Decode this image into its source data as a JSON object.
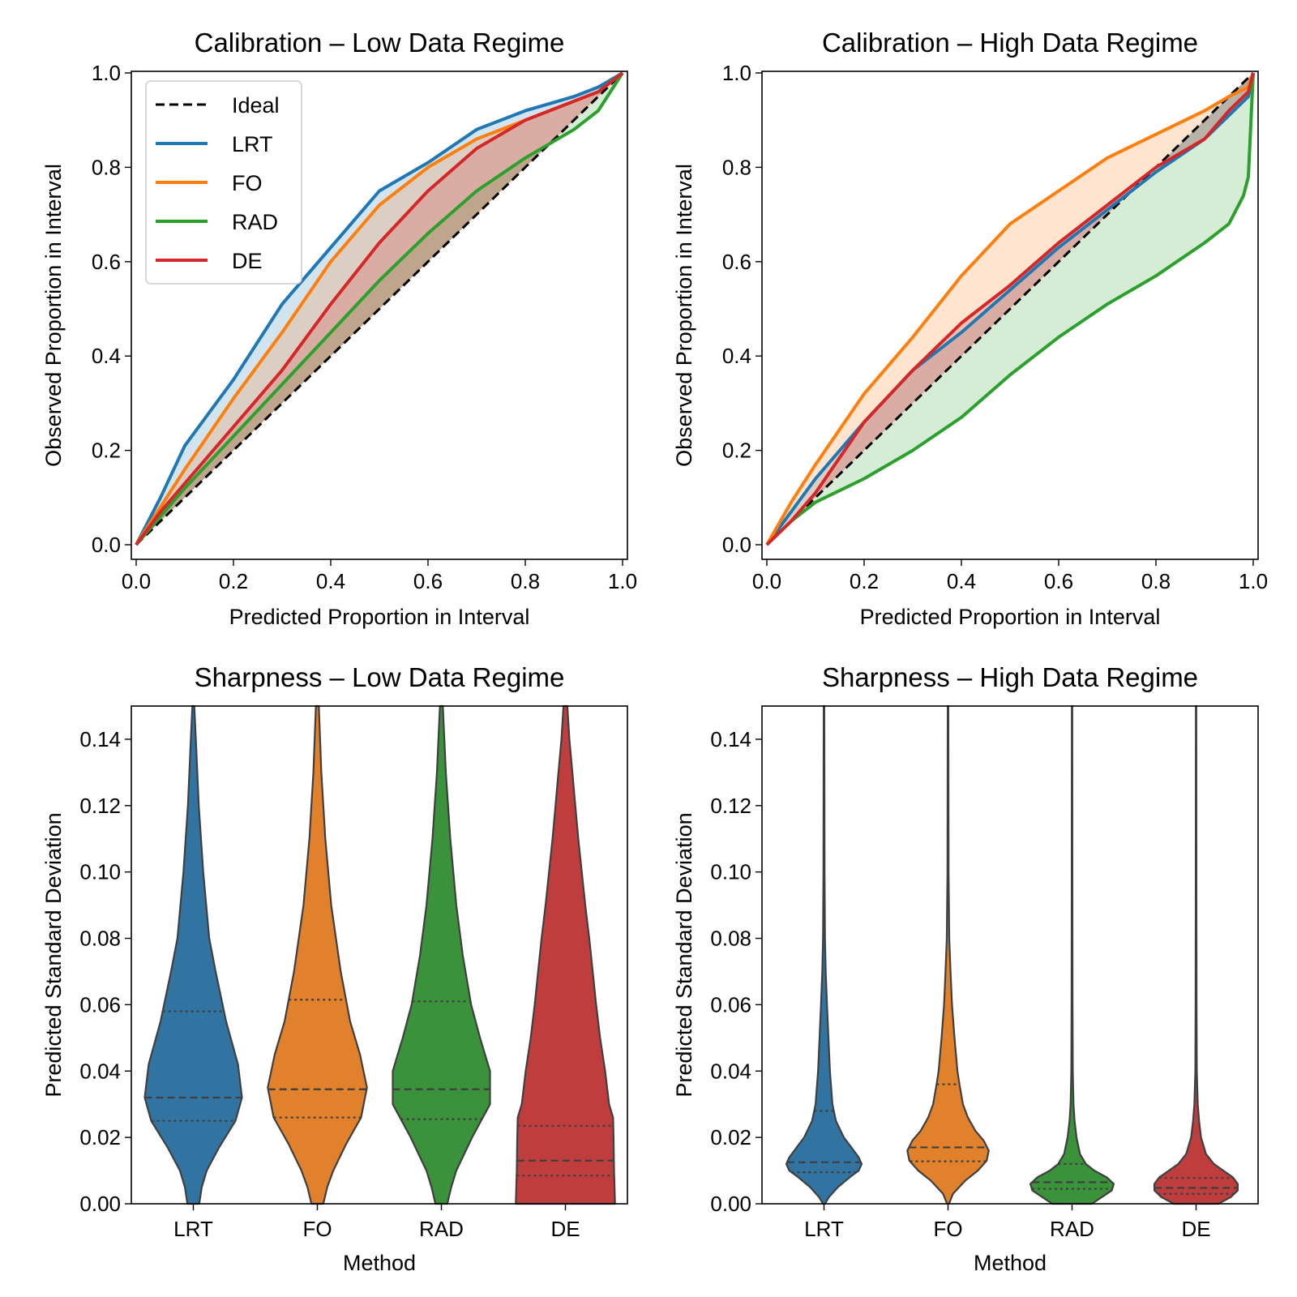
{
  "chart_data": [
    {
      "type": "line",
      "title": "Calibration – Low Data Regime",
      "xlabel": "Predicted Proportion in Interval",
      "ylabel": "Observed Proportion in Interval",
      "xlim": [
        0,
        1
      ],
      "ylim": [
        0,
        1
      ],
      "xticks": [
        "0.0",
        "0.2",
        "0.4",
        "0.6",
        "0.8",
        "1.0"
      ],
      "yticks": [
        "0.0",
        "0.2",
        "0.4",
        "0.6",
        "0.8",
        "1.0"
      ],
      "legend": {
        "location": "upper-left"
      },
      "ideal": {
        "name": "Ideal",
        "color": "#000000",
        "style": "dashed"
      },
      "series": [
        {
          "name": "LRT",
          "color": "#1f77b4",
          "x": [
            0,
            0.05,
            0.1,
            0.2,
            0.3,
            0.4,
            0.5,
            0.6,
            0.7,
            0.8,
            0.9,
            0.95,
            1.0
          ],
          "y": [
            0,
            0.1,
            0.21,
            0.35,
            0.51,
            0.63,
            0.75,
            0.81,
            0.88,
            0.92,
            0.95,
            0.97,
            1.0
          ]
        },
        {
          "name": "FO",
          "color": "#ff7f0e",
          "x": [
            0,
            0.05,
            0.1,
            0.2,
            0.3,
            0.4,
            0.5,
            0.6,
            0.7,
            0.8,
            0.9,
            0.95,
            1.0
          ],
          "y": [
            0,
            0.08,
            0.16,
            0.31,
            0.45,
            0.6,
            0.72,
            0.8,
            0.86,
            0.9,
            0.94,
            0.96,
            1.0
          ]
        },
        {
          "name": "RAD",
          "color": "#2ca02c",
          "x": [
            0,
            0.05,
            0.1,
            0.2,
            0.3,
            0.4,
            0.5,
            0.6,
            0.7,
            0.8,
            0.9,
            0.95,
            1.0
          ],
          "y": [
            0,
            0.06,
            0.12,
            0.23,
            0.34,
            0.45,
            0.56,
            0.66,
            0.75,
            0.82,
            0.88,
            0.92,
            1.0
          ]
        },
        {
          "name": "DE",
          "color": "#d62728",
          "x": [
            0,
            0.05,
            0.1,
            0.2,
            0.3,
            0.4,
            0.5,
            0.6,
            0.7,
            0.8,
            0.9,
            0.95,
            1.0
          ],
          "y": [
            0,
            0.07,
            0.13,
            0.25,
            0.37,
            0.51,
            0.64,
            0.75,
            0.84,
            0.9,
            0.94,
            0.96,
            1.0
          ]
        }
      ]
    },
    {
      "type": "line",
      "title": "Calibration – High Data Regime",
      "xlabel": "Predicted Proportion in Interval",
      "ylabel": "Observed Proportion in Interval",
      "xlim": [
        0,
        1
      ],
      "ylim": [
        0,
        1
      ],
      "xticks": [
        "0.0",
        "0.2",
        "0.4",
        "0.6",
        "0.8",
        "1.0"
      ],
      "yticks": [
        "0.0",
        "0.2",
        "0.4",
        "0.6",
        "0.8",
        "1.0"
      ],
      "ideal": {
        "name": "Ideal",
        "color": "#000000",
        "style": "dashed"
      },
      "series": [
        {
          "name": "LRT",
          "color": "#1f77b4",
          "x": [
            0,
            0.05,
            0.1,
            0.2,
            0.3,
            0.4,
            0.5,
            0.6,
            0.7,
            0.8,
            0.9,
            0.95,
            0.99,
            1.0
          ],
          "y": [
            0,
            0.07,
            0.14,
            0.26,
            0.37,
            0.45,
            0.54,
            0.63,
            0.71,
            0.79,
            0.86,
            0.91,
            0.95,
            1.0
          ]
        },
        {
          "name": "FO",
          "color": "#ff7f0e",
          "x": [
            0,
            0.05,
            0.1,
            0.2,
            0.3,
            0.4,
            0.5,
            0.6,
            0.7,
            0.8,
            0.9,
            0.95,
            0.99,
            1.0
          ],
          "y": [
            0,
            0.09,
            0.17,
            0.32,
            0.44,
            0.57,
            0.68,
            0.75,
            0.82,
            0.87,
            0.92,
            0.95,
            0.97,
            1.0
          ]
        },
        {
          "name": "RAD",
          "color": "#2ca02c",
          "x": [
            0,
            0.05,
            0.1,
            0.2,
            0.3,
            0.4,
            0.5,
            0.6,
            0.7,
            0.8,
            0.9,
            0.95,
            0.98,
            0.99,
            1.0
          ],
          "y": [
            0,
            0.05,
            0.09,
            0.14,
            0.2,
            0.27,
            0.36,
            0.44,
            0.51,
            0.57,
            0.64,
            0.68,
            0.74,
            0.78,
            1.0
          ]
        },
        {
          "name": "DE",
          "color": "#d62728",
          "x": [
            0,
            0.05,
            0.1,
            0.2,
            0.3,
            0.4,
            0.5,
            0.6,
            0.7,
            0.8,
            0.9,
            0.95,
            0.99,
            1.0
          ],
          "y": [
            0,
            0.05,
            0.11,
            0.26,
            0.37,
            0.47,
            0.55,
            0.64,
            0.72,
            0.8,
            0.86,
            0.92,
            0.96,
            1.0
          ]
        }
      ]
    },
    {
      "type": "violin",
      "title": "Sharpness – Low Data Regime",
      "xlabel": "Method",
      "ylabel": "Predicted Standard Deviation",
      "ylim": [
        0,
        0.15
      ],
      "yticks": [
        "0.00",
        "0.02",
        "0.04",
        "0.06",
        "0.08",
        "0.10",
        "0.12",
        "0.14"
      ],
      "categories": [
        "LRT",
        "FO",
        "RAD",
        "DE"
      ],
      "series": [
        {
          "name": "LRT",
          "color": "#3274a1",
          "min": 0.0,
          "q1": 0.025,
          "median": 0.032,
          "q3": 0.058,
          "profile": [
            [
              0,
              0.12
            ],
            [
              0.005,
              0.17
            ],
            [
              0.01,
              0.27
            ],
            [
              0.017,
              0.52
            ],
            [
              0.025,
              0.85
            ],
            [
              0.032,
              0.98
            ],
            [
              0.042,
              0.9
            ],
            [
              0.055,
              0.66
            ],
            [
              0.07,
              0.45
            ],
            [
              0.08,
              0.32
            ],
            [
              0.1,
              0.2
            ],
            [
              0.12,
              0.11
            ],
            [
              0.14,
              0.05
            ],
            [
              0.15,
              0.02
            ]
          ]
        },
        {
          "name": "FO",
          "color": "#e1812c",
          "min": 0.0,
          "q1": 0.026,
          "median": 0.0345,
          "q3": 0.0615,
          "profile": [
            [
              0,
              0.12
            ],
            [
              0.005,
              0.2
            ],
            [
              0.01,
              0.32
            ],
            [
              0.018,
              0.58
            ],
            [
              0.026,
              0.88
            ],
            [
              0.035,
              1.0
            ],
            [
              0.045,
              0.86
            ],
            [
              0.055,
              0.66
            ],
            [
              0.07,
              0.47
            ],
            [
              0.09,
              0.28
            ],
            [
              0.11,
              0.16
            ],
            [
              0.13,
              0.08
            ],
            [
              0.15,
              0.03
            ]
          ]
        },
        {
          "name": "RAD",
          "color": "#3a923a",
          "min": 0.0,
          "q1": 0.0255,
          "median": 0.0345,
          "q3": 0.061,
          "profile": [
            [
              0,
              0.12
            ],
            [
              0.005,
              0.2
            ],
            [
              0.01,
              0.3
            ],
            [
              0.02,
              0.62
            ],
            [
              0.03,
              0.98
            ],
            [
              0.04,
              0.98
            ],
            [
              0.05,
              0.78
            ],
            [
              0.06,
              0.6
            ],
            [
              0.075,
              0.43
            ],
            [
              0.09,
              0.3
            ],
            [
              0.11,
              0.18
            ],
            [
              0.13,
              0.09
            ],
            [
              0.15,
              0.03
            ]
          ]
        },
        {
          "name": "DE",
          "color": "#c03d3e",
          "min": 0.0,
          "q1": 0.0085,
          "median": 0.013,
          "q3": 0.0235,
          "profile": [
            [
              0,
              1.0
            ],
            [
              0.005,
              0.99
            ],
            [
              0.01,
              0.98
            ],
            [
              0.02,
              0.97
            ],
            [
              0.026,
              0.96
            ],
            [
              0.03,
              0.88
            ],
            [
              0.04,
              0.8
            ],
            [
              0.05,
              0.7
            ],
            [
              0.06,
              0.62
            ],
            [
              0.07,
              0.55
            ],
            [
              0.08,
              0.48
            ],
            [
              0.09,
              0.4
            ],
            [
              0.1,
              0.33
            ],
            [
              0.11,
              0.26
            ],
            [
              0.12,
              0.2
            ],
            [
              0.13,
              0.14
            ],
            [
              0.14,
              0.08
            ],
            [
              0.15,
              0.04
            ]
          ]
        }
      ]
    },
    {
      "type": "violin",
      "title": "Sharpness – High Data Regime",
      "xlabel": "Method",
      "ylabel": "Predicted Standard Deviation",
      "ylim": [
        0,
        0.15
      ],
      "yticks": [
        "0.00",
        "0.02",
        "0.04",
        "0.06",
        "0.08",
        "0.10",
        "0.12",
        "0.14"
      ],
      "categories": [
        "LRT",
        "FO",
        "RAD",
        "DE"
      ],
      "series": [
        {
          "name": "LRT",
          "color": "#3274a1",
          "min": 0.0,
          "q1": 0.0095,
          "median": 0.0125,
          "q3": 0.028,
          "profile": [
            [
              0,
              0.02
            ],
            [
              0.002,
              0.1
            ],
            [
              0.005,
              0.28
            ],
            [
              0.008,
              0.52
            ],
            [
              0.01,
              0.7
            ],
            [
              0.012,
              0.76
            ],
            [
              0.014,
              0.7
            ],
            [
              0.017,
              0.55
            ],
            [
              0.02,
              0.4
            ],
            [
              0.025,
              0.24
            ],
            [
              0.03,
              0.17
            ],
            [
              0.04,
              0.12
            ],
            [
              0.05,
              0.09
            ],
            [
              0.06,
              0.06
            ],
            [
              0.07,
              0.035
            ],
            [
              0.08,
              0.02
            ],
            [
              0.1,
              0.012
            ],
            [
              0.15,
              0.006
            ]
          ]
        },
        {
          "name": "FO",
          "color": "#e1812c",
          "min": 0.0,
          "q1": 0.0128,
          "median": 0.017,
          "q3": 0.036,
          "profile": [
            [
              0,
              0.02
            ],
            [
              0.003,
              0.1
            ],
            [
              0.007,
              0.35
            ],
            [
              0.01,
              0.6
            ],
            [
              0.013,
              0.78
            ],
            [
              0.016,
              0.82
            ],
            [
              0.019,
              0.72
            ],
            [
              0.022,
              0.55
            ],
            [
              0.026,
              0.4
            ],
            [
              0.03,
              0.3
            ],
            [
              0.036,
              0.23
            ],
            [
              0.04,
              0.19
            ],
            [
              0.05,
              0.13
            ],
            [
              0.06,
              0.08
            ],
            [
              0.07,
              0.05
            ],
            [
              0.08,
              0.025
            ],
            [
              0.1,
              0.012
            ],
            [
              0.15,
              0.006
            ]
          ]
        },
        {
          "name": "RAD",
          "color": "#3a923a",
          "min": 0.0,
          "q1": 0.0045,
          "median": 0.0065,
          "q3": 0.012,
          "profile": [
            [
              0,
              0.4
            ],
            [
              0.002,
              0.6
            ],
            [
              0.004,
              0.8
            ],
            [
              0.006,
              0.84
            ],
            [
              0.008,
              0.7
            ],
            [
              0.01,
              0.45
            ],
            [
              0.012,
              0.28
            ],
            [
              0.015,
              0.16
            ],
            [
              0.02,
              0.09
            ],
            [
              0.025,
              0.05
            ],
            [
              0.03,
              0.03
            ],
            [
              0.04,
              0.015
            ],
            [
              0.06,
              0.01
            ],
            [
              0.1,
              0.006
            ],
            [
              0.15,
              0.005
            ]
          ]
        },
        {
          "name": "DE",
          "color": "#c03d3e",
          "min": 0.0,
          "q1": 0.003,
          "median": 0.0048,
          "q3": 0.0078,
          "profile": [
            [
              0,
              0.45
            ],
            [
              0.002,
              0.7
            ],
            [
              0.004,
              0.84
            ],
            [
              0.006,
              0.84
            ],
            [
              0.008,
              0.74
            ],
            [
              0.01,
              0.55
            ],
            [
              0.012,
              0.36
            ],
            [
              0.015,
              0.2
            ],
            [
              0.02,
              0.1
            ],
            [
              0.025,
              0.06
            ],
            [
              0.03,
              0.035
            ],
            [
              0.04,
              0.015
            ],
            [
              0.06,
              0.01
            ],
            [
              0.1,
              0.006
            ],
            [
              0.15,
              0.005
            ]
          ]
        }
      ]
    }
  ]
}
